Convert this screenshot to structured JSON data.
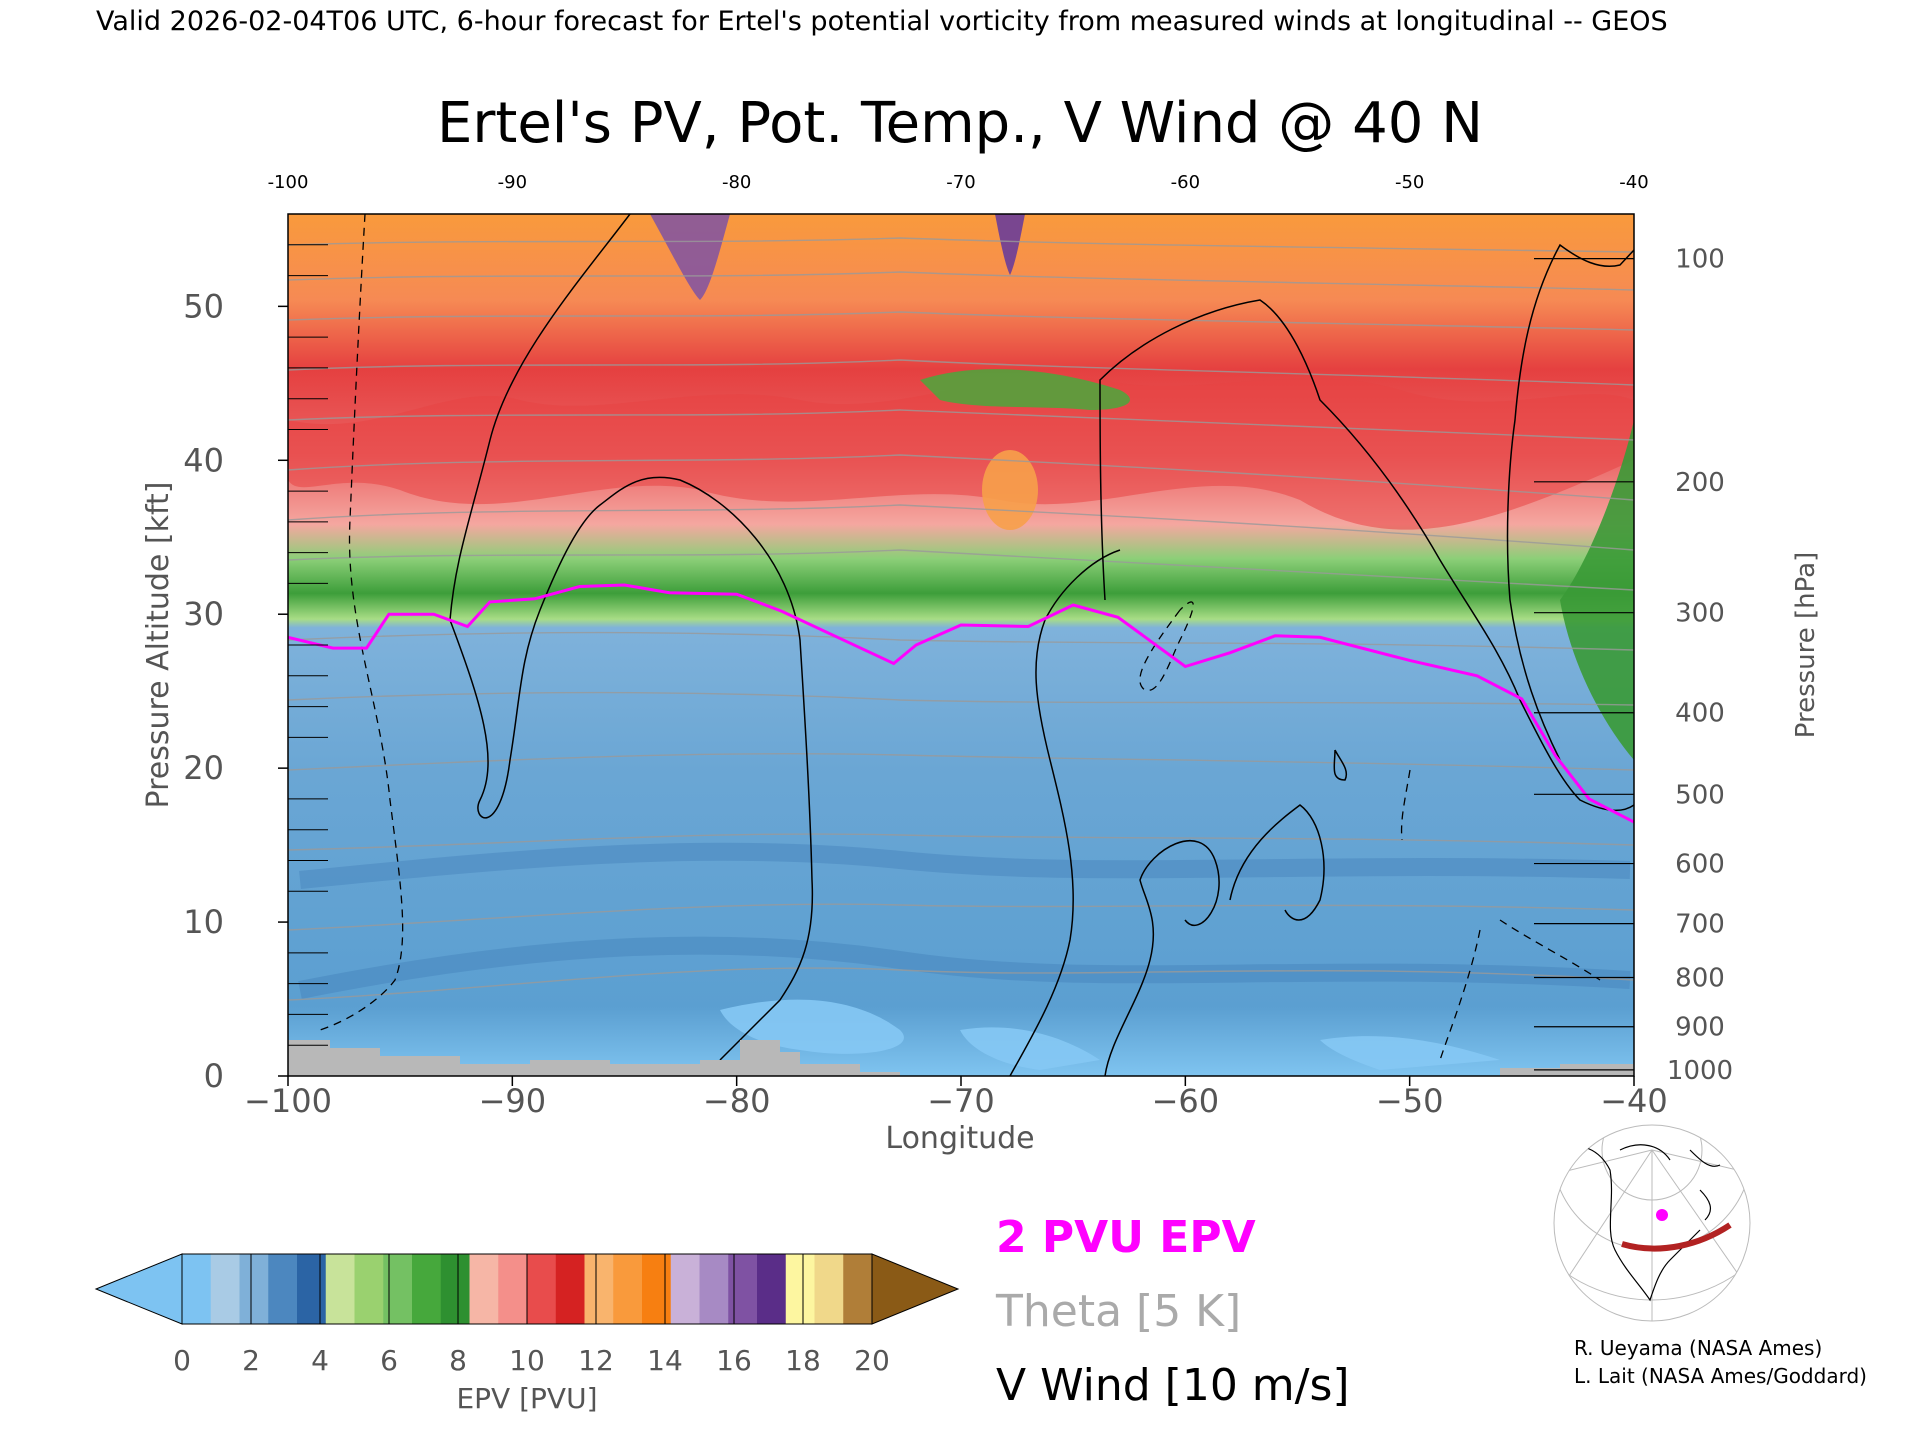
{
  "header": {
    "valid_line": "Valid 2026-02-04T06 UTC, 6-hour forecast for Ertel's potential vorticity from measured winds at longitudinal -- GEOS"
  },
  "chart_data": {
    "type": "heatmap",
    "title": "Ertel's PV, Pot. Temp., V Wind @ 40 N",
    "xlabel": "Longitude",
    "ylabel": "Pressure Altitude [kft]",
    "y2label": "Pressure [hPa]",
    "xlim": [
      -100,
      -40
    ],
    "ylim": [
      0,
      56
    ],
    "x_ticks": [
      -100,
      -90,
      -80,
      -70,
      -60,
      -50,
      -40
    ],
    "x_tick_labels": [
      "−100",
      "−90",
      "−80",
      "−70",
      "−60",
      "−50",
      "−40"
    ],
    "top_x_tick_labels": [
      "-100",
      "-90",
      "-80",
      "-70",
      "-60",
      "-50",
      "-40"
    ],
    "y_ticks": [
      0,
      10,
      20,
      30,
      40,
      50
    ],
    "pressure_ticks": [
      {
        "label": "100",
        "kft": 53.1
      },
      {
        "label": "200",
        "kft": 38.6
      },
      {
        "label": "300",
        "kft": 30.1
      },
      {
        "label": "400",
        "kft": 23.6
      },
      {
        "label": "500",
        "kft": 18.3
      },
      {
        "label": "600",
        "kft": 13.8
      },
      {
        "label": "700",
        "kft": 9.9
      },
      {
        "label": "800",
        "kft": 6.4
      },
      {
        "label": "900",
        "kft": 3.2
      },
      {
        "label": "1000",
        "kft": 0.4
      }
    ],
    "tropopause_2pvu_kft": [
      [
        -100,
        28.5
      ],
      [
        -98,
        27.8
      ],
      [
        -96.5,
        27.8
      ],
      [
        -95.5,
        30.0
      ],
      [
        -93.5,
        30.0
      ],
      [
        -92,
        29.2
      ],
      [
        -91,
        30.8
      ],
      [
        -89,
        31.0
      ],
      [
        -87,
        31.8
      ],
      [
        -85,
        31.9
      ],
      [
        -83,
        31.4
      ],
      [
        -80,
        31.3
      ],
      [
        -78,
        30.2
      ],
      [
        -75.5,
        28.5
      ],
      [
        -73,
        26.8
      ],
      [
        -72,
        28.0
      ],
      [
        -70,
        29.3
      ],
      [
        -67,
        29.2
      ],
      [
        -65,
        30.6
      ],
      [
        -63,
        29.8
      ],
      [
        -61.5,
        28.2
      ],
      [
        -60,
        26.6
      ],
      [
        -58,
        27.5
      ],
      [
        -56,
        28.6
      ],
      [
        -54,
        28.5
      ],
      [
        -50,
        27.0
      ],
      [
        -47,
        26.0
      ],
      [
        -45,
        24.5
      ],
      [
        -43.5,
        20.8
      ],
      [
        -42,
        18.0
      ],
      [
        -40,
        16.5
      ]
    ],
    "colorbar": {
      "label": "EPV [PVU]",
      "ticks": [
        "0",
        "2",
        "4",
        "6",
        "8",
        "10",
        "12",
        "14",
        "16",
        "18",
        "20"
      ],
      "colors": [
        "#7dc3f2",
        "#a9cbe5",
        "#7fb0d8",
        "#4c87bf",
        "#2b64a5",
        "#c8e39a",
        "#9ad16f",
        "#74c163",
        "#46a83c",
        "#2e9030",
        "#f6b6a6",
        "#f48f8a",
        "#e84c4c",
        "#d52222",
        "#f9b46d",
        "#f99a3c",
        "#f77f11",
        "#c9b1d8",
        "#a78ac4",
        "#7f52a3",
        "#5a2d88",
        "#fdf6a0",
        "#f0d88a",
        "#b07e38"
      ],
      "under_color": "#7dc3f2",
      "over_color": "#8a5a16"
    },
    "legend": [
      {
        "label": "2 PVU EPV",
        "color": "#ff00ff"
      },
      {
        "label": "Theta [5 K]",
        "color": "#aaaaaa"
      },
      {
        "label": "V Wind [10 m/s]",
        "color": "#000000"
      }
    ],
    "grid": false
  },
  "credits": [
    "R. Ueyama (NASA Ames)",
    "L. Lait (NASA Ames/Goddard)"
  ],
  "colors": {
    "troposphere": "#6fa8d6",
    "stratosphere_low": "#3f9e3a",
    "stratosphere_mid": "#e84c4c",
    "stratosphere_high": "#f99a3c",
    "tropopause": "#ff00ff",
    "terrain": "#b8b8b8"
  }
}
